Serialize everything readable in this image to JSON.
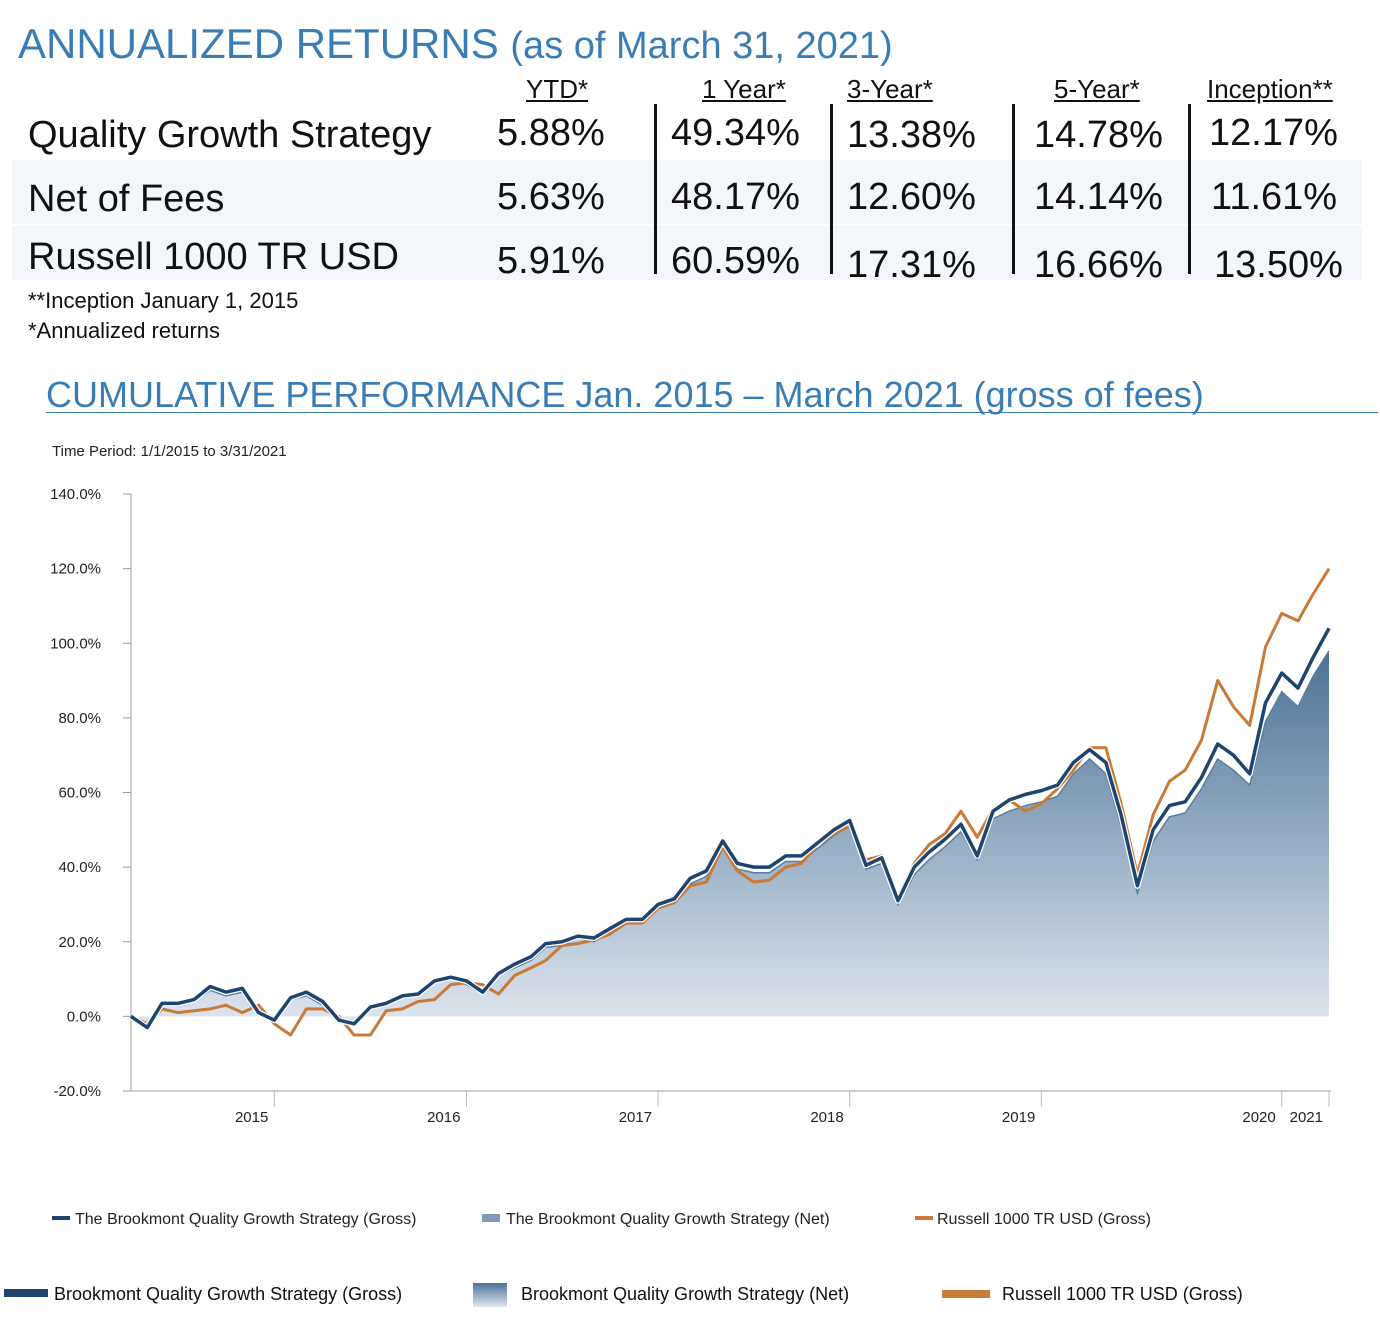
{
  "header": {
    "title": "ANNUALIZED RETURNS",
    "subtitle": "(as of March 31, 2021)"
  },
  "returns_table": {
    "columns": [
      "YTD*",
      "1 Year*",
      "3-Year*",
      "5-Year*",
      "Inception**"
    ],
    "rows": [
      {
        "label": "Quality Growth Strategy",
        "values": [
          "5.88%",
          "49.34%",
          "13.38%",
          "14.78%",
          "12.17%"
        ]
      },
      {
        "label": "Net of Fees",
        "values": [
          "5.63%",
          "48.17%",
          "12.60%",
          "14.14%",
          "11.61%"
        ]
      },
      {
        "label": "Russell 1000 TR USD",
        "values": [
          "5.91%",
          "60.59%",
          "17.31%",
          "16.66%",
          "13.50%"
        ]
      }
    ],
    "notes": [
      "**Inception January 1, 2015",
      "*Annualized returns"
    ]
  },
  "section2_title": "CUMULATIVE PERFORMANCE Jan. 2015 – March 2021 (gross of fees)",
  "colors": {
    "title": "#3a7db5",
    "gross": "#1d4570",
    "net_top": "#4d7296",
    "net_bottom": "#dfe7f0",
    "russell": "#c97a36"
  },
  "chart_data": {
    "type": "area",
    "time_period": "Time Period: 1/1/2015 to 3/31/2021",
    "ylim": [
      -20,
      140
    ],
    "yticks": [
      -20,
      0,
      20,
      40,
      60,
      80,
      100,
      120,
      140
    ],
    "ytick_labels": [
      "-20.0%",
      "0.0%",
      "20.0%",
      "40.0%",
      "60.0%",
      "80.0%",
      "100.0%",
      "120.0%",
      "140.0%"
    ],
    "xlim": [
      "2014-12-31",
      "2021-03-31"
    ],
    "x_tick_labels": [
      {
        "label": "2015",
        "date": "2015-09-30"
      },
      {
        "label": "2016",
        "date": "2016-09-30"
      },
      {
        "label": "2017",
        "date": "2017-09-30"
      },
      {
        "label": "2018",
        "date": "2018-09-30"
      },
      {
        "label": "2019",
        "date": "2019-09-30"
      },
      {
        "label": "2020",
        "date": "2020-12-31"
      },
      {
        "label": "2021",
        "date": "2021-03-31"
      }
    ],
    "dates": [
      "2014-12-31",
      "2015-01-31",
      "2015-02-28",
      "2015-03-31",
      "2015-04-30",
      "2015-05-31",
      "2015-06-30",
      "2015-07-31",
      "2015-08-31",
      "2015-09-30",
      "2015-10-31",
      "2015-11-30",
      "2015-12-31",
      "2016-01-31",
      "2016-02-29",
      "2016-03-31",
      "2016-04-30",
      "2016-05-31",
      "2016-06-30",
      "2016-07-31",
      "2016-08-31",
      "2016-09-30",
      "2016-10-31",
      "2016-11-30",
      "2016-12-31",
      "2017-01-31",
      "2017-02-28",
      "2017-03-31",
      "2017-04-30",
      "2017-05-31",
      "2017-06-30",
      "2017-07-31",
      "2017-08-31",
      "2017-09-30",
      "2017-10-31",
      "2017-11-30",
      "2017-12-31",
      "2018-01-31",
      "2018-02-28",
      "2018-03-31",
      "2018-04-30",
      "2018-05-31",
      "2018-06-30",
      "2018-07-31",
      "2018-08-31",
      "2018-09-30",
      "2018-10-31",
      "2018-11-30",
      "2018-12-31",
      "2019-01-31",
      "2019-02-28",
      "2019-03-31",
      "2019-04-30",
      "2019-05-31",
      "2019-06-30",
      "2019-07-31",
      "2019-08-31",
      "2019-09-30",
      "2019-10-31",
      "2019-11-30",
      "2019-12-31",
      "2020-01-31",
      "2020-02-29",
      "2020-03-31",
      "2020-04-30",
      "2020-05-31",
      "2020-06-30",
      "2020-07-31",
      "2020-08-31",
      "2020-09-30",
      "2020-10-31",
      "2020-11-30",
      "2020-12-31",
      "2021-01-31",
      "2021-02-28",
      "2021-03-31"
    ],
    "series": [
      {
        "name": "The Brookmont Quality Growth Strategy (Gross)",
        "values": [
          0,
          -3,
          3.5,
          3.5,
          4.5,
          8,
          6.5,
          7.5,
          1,
          -1,
          5,
          6.5,
          4,
          -1,
          -2,
          2.5,
          3.5,
          5.5,
          6,
          9.5,
          10.5,
          9.5,
          6.5,
          11.5,
          14,
          16,
          19.5,
          20,
          21.5,
          21,
          23.5,
          26,
          26,
          30,
          31.5,
          37,
          39,
          47,
          41,
          40,
          40,
          43,
          43,
          46.5,
          50,
          52.5,
          40.5,
          42.5,
          31,
          40,
          44,
          47.5,
          51.5,
          43,
          55,
          58,
          59.5,
          60.5,
          62,
          68,
          71.5,
          68,
          54,
          35,
          50,
          56.5,
          57.5,
          64,
          73,
          70,
          65,
          84,
          92,
          88,
          96,
          104
        ]
      },
      {
        "name": "The Brookmont Quality Growth Strategy (Net)",
        "values": [
          0,
          -3,
          3,
          3,
          4,
          7,
          5.5,
          6.5,
          0.5,
          -1.5,
          4.5,
          5.5,
          3,
          -1.5,
          -2.5,
          2,
          3,
          5,
          5.5,
          9,
          10,
          8.5,
          6,
          11,
          13,
          15,
          18.5,
          19,
          21,
          20,
          22.5,
          25,
          25,
          29,
          30.5,
          35.5,
          37.5,
          45.5,
          39.5,
          38.5,
          38.5,
          41.5,
          41.5,
          45,
          48.5,
          51,
          39.5,
          41,
          30,
          38,
          42,
          45.5,
          49.5,
          42,
          53,
          55,
          56.5,
          57.5,
          59,
          65,
          69,
          65,
          51,
          33,
          47,
          53.5,
          54.5,
          61,
          69,
          66,
          62,
          79,
          87,
          83,
          91,
          98
        ]
      },
      {
        "name": "Russell 1000 TR USD (Gross)",
        "values": [
          0,
          -2,
          2,
          1,
          1.5,
          2,
          3,
          1,
          3,
          -2,
          -5,
          2,
          2,
          0,
          -5,
          -5,
          1.5,
          2,
          4,
          4.5,
          8.5,
          9,
          8.5,
          6,
          11,
          13,
          15,
          19,
          19.5,
          20.5,
          22,
          25,
          25,
          29,
          30.5,
          35,
          36,
          45.5,
          39,
          36,
          36.5,
          40,
          41,
          46,
          49,
          51,
          42,
          43,
          32,
          41,
          46,
          49,
          55,
          48,
          55.5,
          58,
          55,
          57,
          61,
          66,
          72,
          72,
          57,
          38,
          54,
          63,
          66,
          74,
          90,
          83,
          78,
          99,
          108,
          106,
          113,
          120
        ]
      }
    ],
    "legend": [
      "The Brookmont Quality Growth Strategy (Gross)",
      "The Brookmont Quality Growth Strategy (Net)",
      "Russell 1000 TR USD (Gross)"
    ]
  },
  "bottom_legend": [
    "Brookmont Quality Growth Strategy (Gross)",
    "Brookmont Quality Growth Strategy (Net)",
    "Russell 1000 TR USD (Gross)"
  ]
}
